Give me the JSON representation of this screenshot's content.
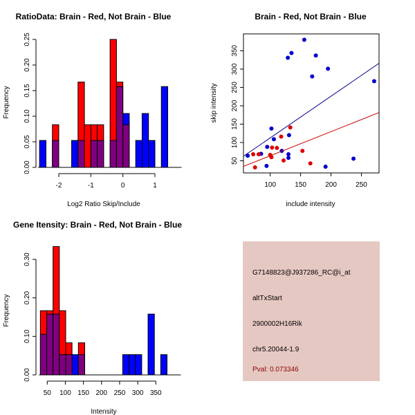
{
  "colors": {
    "brain": "#ff0000",
    "not_brain": "#0000ff",
    "overlap": "#7f007f",
    "info_bg": "#e6c8c2",
    "pval": "#8b0000",
    "scatter_red": "#dd0000",
    "scatter_blue": "#0000cc",
    "line_blue": "#00008b",
    "line_red": "#cc0000"
  },
  "chart_data": [
    {
      "type": "bar",
      "title": "RatioData: Brain - Red, Not Brain - Blue",
      "xlabel": "Log2 Ratio Skip/Include",
      "ylabel": "Frequency",
      "xlim": [
        -2.6,
        1.4
      ],
      "ylim": [
        0,
        0.25
      ],
      "xticks": [
        -2,
        -1,
        0,
        1
      ],
      "xtick_labels": [
        "-2",
        "-1",
        "0",
        "1"
      ],
      "yticks": [
        0,
        0.05,
        0.1,
        0.15,
        0.2,
        0.25
      ],
      "ytick_labels": [
        "0.00",
        "0.05",
        "0.10",
        "0.15",
        "0.20",
        "0.25"
      ],
      "bin_start": -2.6,
      "bin_width": 0.2,
      "series": [
        {
          "name": "Brain",
          "color": "red",
          "values": [
            0,
            0,
            0.0833,
            0,
            0,
            0,
            0.1667,
            0.0833,
            0.0833,
            0.0833,
            0,
            0.25,
            0.1667,
            0.0833,
            0,
            0,
            0,
            0,
            0,
            0
          ]
        },
        {
          "name": "Not Brain",
          "color": "blue",
          "values": [
            0.0526,
            0,
            0.0526,
            0,
            0,
            0.0526,
            0.0526,
            0,
            0.0526,
            0.0526,
            0,
            0.0526,
            0.1579,
            0.1053,
            0,
            0.0526,
            0.1053,
            0.0526,
            0,
            0.1579
          ]
        }
      ]
    },
    {
      "type": "scatter",
      "title": "Brain - Red, Not Brain - Blue",
      "xlabel": "include intensity",
      "ylabel": "skip intensity",
      "xlim": [
        56,
        279
      ],
      "ylim": [
        17,
        396
      ],
      "xticks": [
        100,
        150,
        200,
        250
      ],
      "xtick_labels": [
        "100",
        "150",
        "200",
        "250"
      ],
      "yticks": [
        50,
        100,
        150,
        200,
        250,
        300,
        350
      ],
      "ytick_labels": [
        "50",
        "100",
        "150",
        "200",
        "250",
        "300",
        "350"
      ],
      "series": [
        {
          "name": "Not Brain",
          "color": "blue",
          "x": [
            63,
            85,
            94,
            95,
            102,
            106,
            119,
            129,
            130,
            130,
            131,
            135,
            156,
            169,
            175,
            191,
            195,
            237,
            271
          ],
          "y": [
            64,
            69,
            36,
            88,
            138,
            109,
            77,
            331,
            58,
            68,
            120,
            344,
            380,
            280,
            337,
            34,
            301,
            56,
            267
          ],
          "fit": {
            "slope": 1.136,
            "intercept": -1.1
          }
        },
        {
          "name": "Brain",
          "color": "red",
          "x": [
            72,
            75,
            81,
            100,
            102,
            103,
            111,
            118,
            122,
            133,
            153,
            166
          ],
          "y": [
            68,
            32,
            68,
            66,
            60,
            86,
            85,
            116,
            51,
            141,
            77,
            43
          ],
          "fit": {
            "slope": 0.658,
            "intercept": -2.1
          }
        }
      ]
    },
    {
      "type": "bar",
      "title": "Gene Itensity: Brain - Red, Not Brain - Blue",
      "xlabel": "Intensity",
      "ylabel": "Frequency",
      "xlim": [
        31,
        381
      ],
      "ylim": [
        0,
        0.333
      ],
      "xticks": [
        50,
        100,
        150,
        200,
        250,
        300,
        350
      ],
      "xtick_labels": [
        "50",
        "100",
        "150",
        "200",
        "250",
        "300",
        "350"
      ],
      "yticks": [
        0,
        0.1,
        0.2,
        0.3
      ],
      "ytick_labels": [
        "0.00",
        "0.10",
        "0.20",
        "0.30"
      ],
      "bin_start": 31,
      "bin_width": 17.5,
      "series": [
        {
          "name": "Brain",
          "color": "red",
          "values": [
            0.1667,
            0.1667,
            0.3333,
            0.1667,
            0.0833,
            0,
            0.0833,
            0,
            0,
            0,
            0,
            0,
            0,
            0,
            0,
            0,
            0,
            0,
            0,
            0
          ]
        },
        {
          "name": "Not Brain",
          "color": "blue",
          "values": [
            0.1053,
            0.1579,
            0.1579,
            0.0526,
            0.0526,
            0.0526,
            0.0526,
            0,
            0,
            0,
            0,
            0,
            0,
            0.0526,
            0.0526,
            0.0526,
            0,
            0.1579,
            0,
            0.0526
          ]
        }
      ]
    }
  ],
  "info_panel": {
    "probe": "G7148823@J937286_RC@i_at",
    "event_type": "altTxStart",
    "gene": "2900002H16Rik",
    "location": "chr5.20044-1.9",
    "pval": "Pval: 0.073346"
  }
}
